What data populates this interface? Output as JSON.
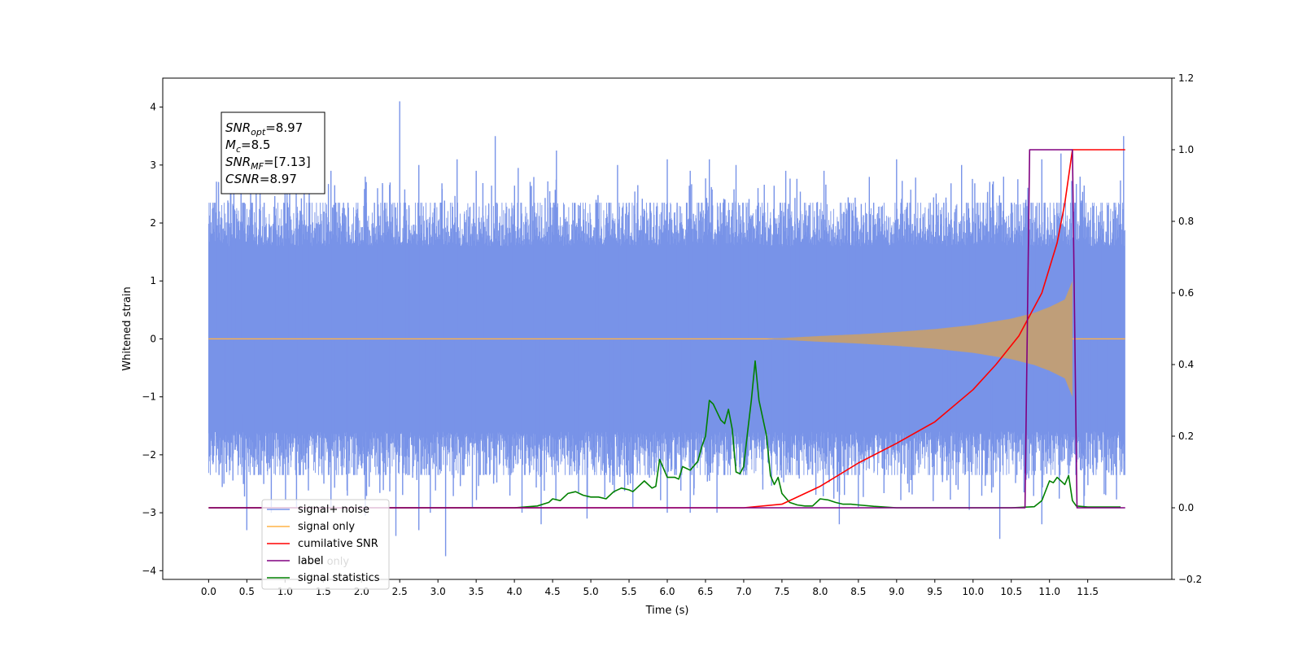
{
  "chart_data": {
    "type": "line",
    "xlabel": "Time (s)",
    "ylabel": "Whitened strain",
    "xlim": [
      -0.6,
      12.6
    ],
    "ylim": [
      -4.15,
      4.5
    ],
    "y2lim": [
      -0.2,
      1.2
    ],
    "x_ticks": [
      "0.0",
      "0.5",
      "1.0",
      "1.5",
      "2.0",
      "2.5",
      "3.0",
      "3.5",
      "4.0",
      "4.5",
      "5.0",
      "5.5",
      "6.0",
      "6.5",
      "7.0",
      "7.5",
      "8.0",
      "8.5",
      "9.0",
      "9.5",
      "10.0",
      "10.5",
      "11.0",
      "11.5"
    ],
    "y_ticks": [
      "−4",
      "−3",
      "−2",
      "−1",
      "0",
      "1",
      "2",
      "3",
      "4"
    ],
    "y2_ticks": [
      "−0.2",
      "0.0",
      "0.2",
      "0.4",
      "0.6",
      "0.8",
      "1.0",
      "1.2"
    ],
    "annotation": {
      "lines": [
        {
          "main": "SNR",
          "sub": "opt",
          "rest": "=8.97"
        },
        {
          "main": "M",
          "sub": "c",
          "rest": "=8.5"
        },
        {
          "main": "SNR",
          "sub": "MF",
          "rest": "=[7.13]"
        },
        {
          "main": "CSNR",
          "sub": "",
          "rest": "=8.97"
        }
      ]
    },
    "legend": {
      "position": "lower-left",
      "entries": [
        "signal+ noise",
        "signal only",
        "cumilative SNR",
        "label",
        "signal statistics"
      ],
      "hidden_under": "label only"
    },
    "colors": {
      "signal_noise": "#7893e8",
      "signal_only": "#ffb347",
      "signal_overlap": "#bf9e79",
      "cumulative_snr": "#ff0000",
      "label": "#800080",
      "statistics": "#008000"
    },
    "series": [
      {
        "name": "signal+ noise",
        "axis": "left",
        "kind": "noise",
        "x_range": [
          0.0,
          11.99
        ],
        "typical_band": [
          -1.6,
          1.6
        ],
        "peaks_above": [
          [
            0.33,
            2.6
          ],
          [
            0.55,
            2.5
          ],
          [
            1.0,
            2.7
          ],
          [
            1.25,
            2.9
          ],
          [
            1.6,
            2.9
          ],
          [
            2.05,
            2.8
          ],
          [
            2.5,
            4.1
          ],
          [
            2.75,
            3.0
          ],
          [
            3.25,
            3.1
          ],
          [
            3.5,
            2.9
          ],
          [
            3.75,
            3.5
          ],
          [
            4.05,
            2.95
          ],
          [
            4.55,
            3.25
          ],
          [
            5.35,
            3.0
          ],
          [
            6.0,
            3.1
          ],
          [
            6.3,
            2.9
          ],
          [
            6.55,
            3.1
          ],
          [
            6.9,
            3.0
          ],
          [
            7.55,
            2.9
          ],
          [
            8.05,
            2.9
          ],
          [
            9.0,
            3.1
          ],
          [
            9.85,
            3.0
          ],
          [
            10.4,
            2.8
          ],
          [
            10.9,
            3.1
          ],
          [
            11.15,
            3.2
          ],
          [
            11.4,
            2.8
          ],
          [
            11.97,
            3.5
          ]
        ],
        "peaks_below": [
          [
            0.05,
            -2.1
          ],
          [
            0.2,
            -2.5
          ],
          [
            0.5,
            -3.3
          ],
          [
            0.82,
            -3.0
          ],
          [
            1.15,
            -2.9
          ],
          [
            1.6,
            -2.9
          ],
          [
            2.05,
            -3.05
          ],
          [
            2.45,
            -3.4
          ],
          [
            2.75,
            -3.3
          ],
          [
            2.9,
            -3.0
          ],
          [
            3.1,
            -3.75
          ],
          [
            3.45,
            -2.9
          ],
          [
            4.1,
            -3.0
          ],
          [
            4.35,
            -3.2
          ],
          [
            4.95,
            -3.1
          ],
          [
            5.55,
            -2.9
          ],
          [
            6.0,
            -3.0
          ],
          [
            6.3,
            -3.0
          ],
          [
            6.65,
            -3.0
          ],
          [
            7.25,
            -2.6
          ],
          [
            8.25,
            -3.2
          ],
          [
            8.5,
            -2.9
          ],
          [
            9.95,
            -2.95
          ],
          [
            10.35,
            -3.45
          ],
          [
            10.9,
            -3.2
          ],
          [
            11.45,
            -2.9
          ]
        ]
      },
      {
        "name": "signal only",
        "axis": "left",
        "kind": "chirp",
        "flat_until": 7.3,
        "merger_time": 11.3,
        "envelope": [
          [
            7.3,
            0.0
          ],
          [
            8.0,
            0.05
          ],
          [
            8.5,
            0.08
          ],
          [
            9.0,
            0.12
          ],
          [
            9.5,
            0.17
          ],
          [
            10.0,
            0.24
          ],
          [
            10.5,
            0.35
          ],
          [
            10.8,
            0.45
          ],
          [
            11.0,
            0.55
          ],
          [
            11.2,
            0.68
          ],
          [
            11.3,
            1.0
          ]
        ],
        "after_merger": 0.0,
        "x_end": 11.99
      },
      {
        "name": "cumilative SNR",
        "axis": "right",
        "x": [
          0.0,
          7.0,
          7.5,
          8.0,
          8.5,
          9.0,
          9.5,
          10.0,
          10.3,
          10.6,
          10.9,
          11.1,
          11.2,
          11.3,
          11.99
        ],
        "y": [
          0.0,
          0.0,
          0.01,
          0.06,
          0.125,
          0.18,
          0.24,
          0.33,
          0.4,
          0.48,
          0.6,
          0.74,
          0.85,
          1.0,
          1.0
        ]
      },
      {
        "name": "label",
        "axis": "right",
        "x": [
          0.0,
          10.68,
          10.74,
          11.3,
          11.36,
          11.99
        ],
        "y": [
          0.0,
          0.0,
          1.0,
          1.0,
          0.0,
          0.0
        ]
      },
      {
        "name": "signal statistics",
        "axis": "right",
        "x": [
          0.0,
          4.0,
          4.3,
          4.45,
          4.5,
          4.6,
          4.7,
          4.8,
          4.9,
          5.0,
          5.1,
          5.2,
          5.3,
          5.4,
          5.5,
          5.55,
          5.6,
          5.7,
          5.8,
          5.85,
          5.9,
          6.0,
          6.1,
          6.15,
          6.2,
          6.3,
          6.4,
          6.45,
          6.5,
          6.55,
          6.6,
          6.7,
          6.75,
          6.8,
          6.85,
          6.9,
          6.95,
          7.0,
          7.05,
          7.1,
          7.15,
          7.2,
          7.3,
          7.35,
          7.4,
          7.45,
          7.5,
          7.6,
          7.7,
          7.8,
          7.9,
          8.0,
          8.1,
          8.2,
          8.3,
          8.4,
          8.5,
          8.7,
          9.0,
          10.5,
          10.8,
          10.9,
          11.0,
          11.05,
          11.1,
          11.2,
          11.25,
          11.3,
          11.35,
          11.5,
          11.93
        ],
        "y": [
          0.0,
          0.0,
          0.005,
          0.015,
          0.025,
          0.02,
          0.04,
          0.045,
          0.035,
          0.03,
          0.03,
          0.025,
          0.045,
          0.055,
          0.05,
          0.045,
          0.055,
          0.075,
          0.055,
          0.06,
          0.135,
          0.085,
          0.085,
          0.08,
          0.115,
          0.105,
          0.13,
          0.17,
          0.2,
          0.3,
          0.29,
          0.245,
          0.235,
          0.275,
          0.22,
          0.1,
          0.095,
          0.115,
          0.21,
          0.3,
          0.41,
          0.3,
          0.2,
          0.09,
          0.065,
          0.085,
          0.04,
          0.015,
          0.008,
          0.005,
          0.005,
          0.025,
          0.022,
          0.015,
          0.01,
          0.01,
          0.008,
          0.004,
          0.0,
          0.0,
          0.003,
          0.02,
          0.075,
          0.07,
          0.085,
          0.065,
          0.09,
          0.02,
          0.005,
          0.002,
          0.002
        ]
      }
    ]
  }
}
